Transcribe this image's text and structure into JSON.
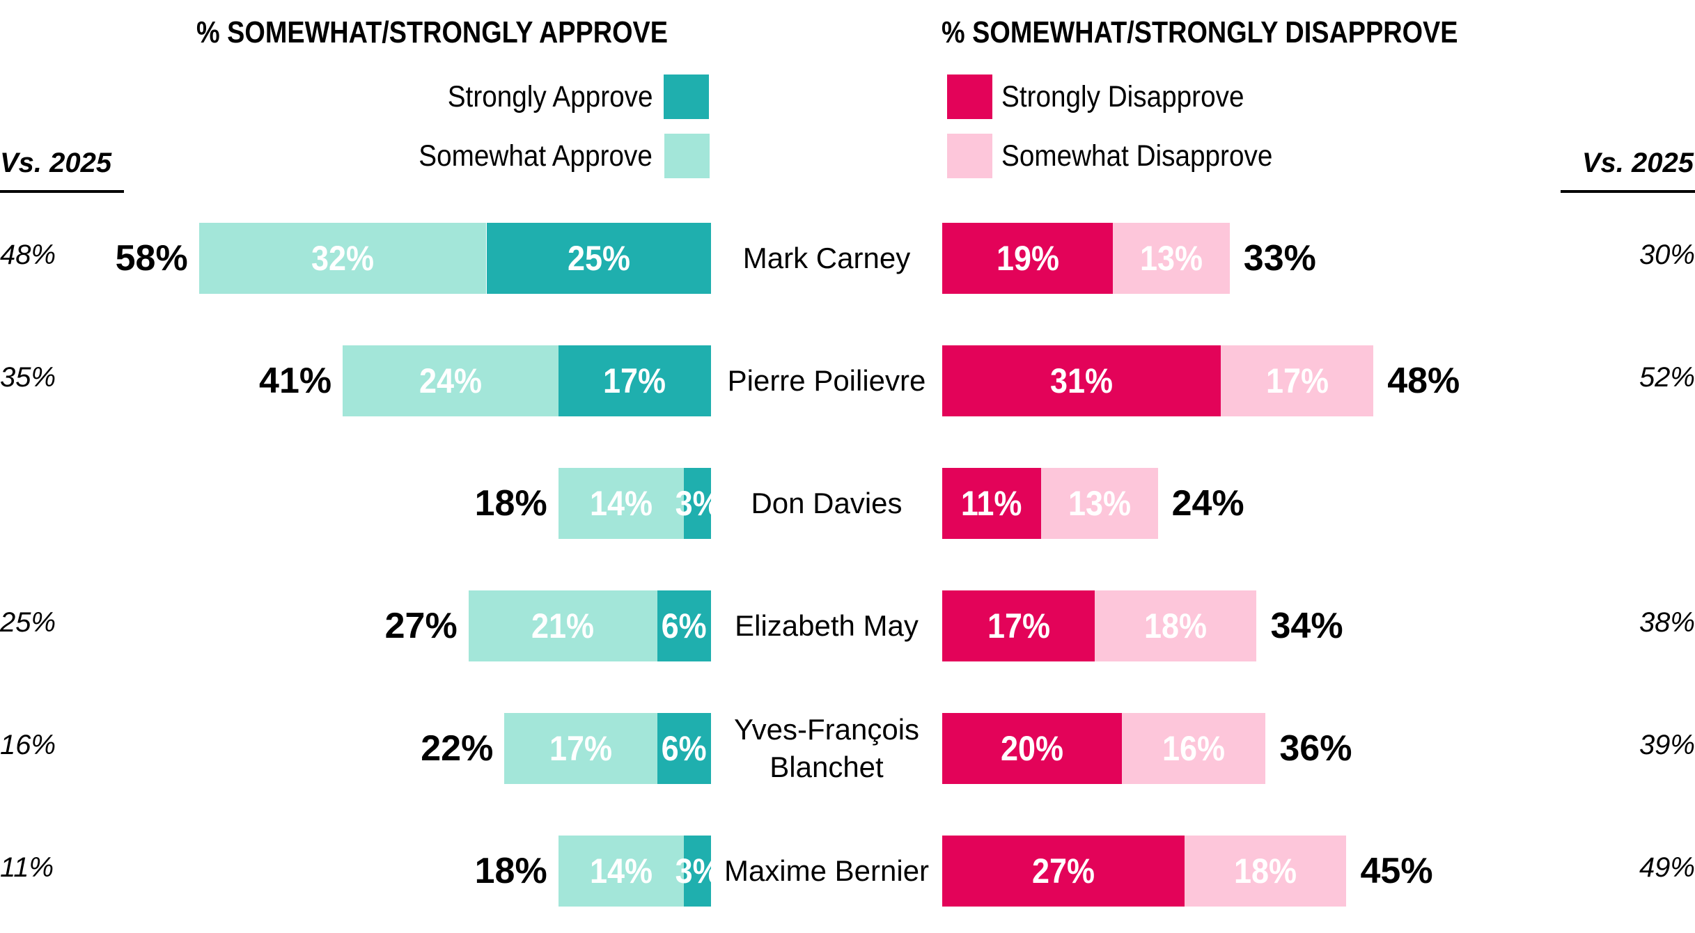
{
  "headers": {
    "approve": "% SOMEWHAT/STRONGLY APPROVE",
    "disapprove": "% SOMEWHAT/STRONGLY DISAPPROVE"
  },
  "legend": {
    "strongly_approve": {
      "label": "Strongly Approve",
      "color": "#1FAFAE"
    },
    "somewhat_approve": {
      "label": "Somewhat Approve",
      "color": "#A3E6D9"
    },
    "strongly_disapprove": {
      "label": "Strongly Disapprove",
      "color": "#E30359"
    },
    "somewhat_disapprove": {
      "label": "Somewhat Disapprove",
      "color": "#FDC6DA"
    }
  },
  "vs_label_left": "Vs. 2025",
  "vs_label_right": "Vs. 2025",
  "rows": [
    {
      "name": "Mark Carney",
      "approve_total": "58%",
      "somewhat_approve": "32%",
      "strongly_approve": "25%",
      "strongly_disapprove": "19%",
      "somewhat_disapprove": "13%",
      "disapprove_total": "33%",
      "prior_approve": "48%",
      "prior_disapprove": "30%"
    },
    {
      "name": "Pierre Poilievre",
      "approve_total": "41%",
      "somewhat_approve": "24%",
      "strongly_approve": "17%",
      "strongly_disapprove": "31%",
      "somewhat_disapprove": "17%",
      "disapprove_total": "48%",
      "prior_approve": "35%",
      "prior_disapprove": "52%"
    },
    {
      "name": "Don Davies",
      "approve_total": "18%",
      "somewhat_approve": "14%",
      "strongly_approve": "3%",
      "strongly_disapprove": "11%",
      "somewhat_disapprove": "13%",
      "disapprove_total": "24%",
      "prior_approve": "",
      "prior_disapprove": ""
    },
    {
      "name": "Elizabeth May",
      "approve_total": "27%",
      "somewhat_approve": "21%",
      "strongly_approve": "6%",
      "strongly_disapprove": "17%",
      "somewhat_disapprove": "18%",
      "disapprove_total": "34%",
      "prior_approve": "25%",
      "prior_disapprove": "38%"
    },
    {
      "name": "Yves-François\nBlanchet",
      "approve_total": "22%",
      "somewhat_approve": "17%",
      "strongly_approve": "6%",
      "strongly_disapprove": "20%",
      "somewhat_disapprove": "16%",
      "disapprove_total": "36%",
      "prior_approve": "16%",
      "prior_disapprove": "39%"
    },
    {
      "name": "Maxime Bernier",
      "approve_total": "18%",
      "somewhat_approve": "14%",
      "strongly_approve": "3%",
      "strongly_disapprove": "27%",
      "somewhat_disapprove": "18%",
      "disapprove_total": "45%",
      "prior_approve": "11%",
      "prior_disapprove": "49%"
    }
  ],
  "chart_data": {
    "type": "bar",
    "orientation": "horizontal-diverging-stacked",
    "categories": [
      "Mark Carney",
      "Pierre Poilievre",
      "Don Davies",
      "Elizabeth May",
      "Yves-François Blanchet",
      "Maxime Bernier"
    ],
    "series": [
      {
        "name": "Somewhat Approve",
        "color": "#A3E6D9",
        "values": [
          32,
          24,
          14,
          21,
          17,
          14
        ]
      },
      {
        "name": "Strongly Approve",
        "color": "#1FAFAE",
        "values": [
          25,
          17,
          3,
          6,
          6,
          3
        ]
      },
      {
        "name": "Strongly Disapprove",
        "color": "#E30359",
        "values": [
          19,
          31,
          11,
          17,
          20,
          27
        ]
      },
      {
        "name": "Somewhat Disapprove",
        "color": "#FDC6DA",
        "values": [
          13,
          17,
          13,
          18,
          16,
          18
        ]
      }
    ],
    "totals": {
      "approve": [
        58,
        41,
        18,
        27,
        22,
        18
      ],
      "disapprove": [
        33,
        48,
        24,
        34,
        36,
        45
      ]
    },
    "vs_2025": {
      "approve": [
        48,
        35,
        null,
        25,
        16,
        11
      ],
      "disapprove": [
        30,
        52,
        null,
        38,
        39,
        49
      ]
    },
    "title_left": "% SOMEWHAT/STRONGLY APPROVE",
    "title_right": "% SOMEWHAT/STRONGLY DISAPPROVE",
    "legend_position": "top",
    "grid": false,
    "xlabel": "",
    "ylabel": ""
  }
}
